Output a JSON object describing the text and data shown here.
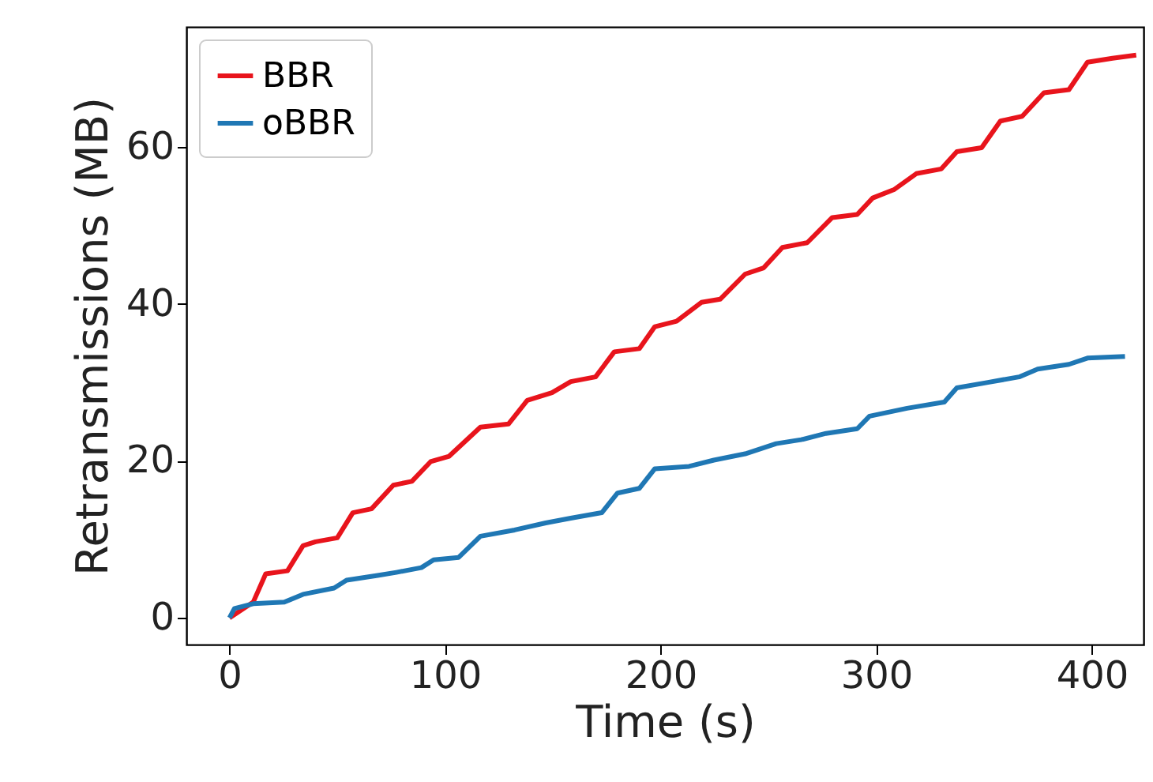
{
  "chart_data": {
    "type": "line",
    "xlabel": "Time (s)",
    "ylabel": "Retransmissions (MB)",
    "xlim": [
      -20,
      424
    ],
    "ylim": [
      -3.4,
      75.3
    ],
    "xticks": [
      0,
      100,
      200,
      300,
      400
    ],
    "yticks": [
      0,
      20,
      40,
      60
    ],
    "grid": false,
    "legend": "top left",
    "line_style": "solid",
    "marker": "none",
    "series": [
      {
        "name": "BBR",
        "color": "#e8141c",
        "x": [
          0,
          11,
          16.8,
          26.9,
          34.1,
          39.9,
          50,
          57.2,
          65.9,
          76,
          84.6,
          93.3,
          101.9,
          116.4,
          129.4,
          138.1,
          149.6,
          158.3,
          169.8,
          178.5,
          190.1,
          197.3,
          207.4,
          218.9,
          227.6,
          239.2,
          247.8,
          256.5,
          268,
          279.6,
          291.2,
          298.4,
          308.5,
          318.6,
          330.2,
          337.4,
          348.9,
          357.6,
          367.7,
          377.8,
          389.4,
          398,
          409.6,
          420.6
        ],
        "values": [
          0,
          2.0,
          5.6,
          6.0,
          9.2,
          9.7,
          10.2,
          13.4,
          13.9,
          16.9,
          17.4,
          19.9,
          20.6,
          24.3,
          24.7,
          27.7,
          28.7,
          30.1,
          30.7,
          33.9,
          34.3,
          37.1,
          37.8,
          40.2,
          40.6,
          43.8,
          44.6,
          47.2,
          47.8,
          51,
          51.4,
          53.5,
          54.6,
          56.6,
          57.2,
          59.4,
          59.9,
          63.3,
          63.9,
          66.9,
          67.3,
          70.8,
          71.3,
          71.7
        ]
      },
      {
        "name": "oBBR",
        "color": "#1f77b4",
        "x": [
          0,
          2.3,
          11,
          25.4,
          34.1,
          48.5,
          54.3,
          68.7,
          77.4,
          89,
          94.7,
          106.3,
          116.4,
          132.3,
          146.7,
          158.3,
          172.7,
          180,
          190.1,
          197.3,
          213.2,
          224.7,
          239.2,
          253.6,
          265.2,
          276.7,
          291.2,
          296.9,
          314.3,
          331.6,
          337.4,
          351.8,
          366.3,
          374.9,
          389.4,
          398,
          415.4
        ],
        "values": [
          0,
          1.2,
          1.8,
          2.0,
          3.0,
          3.8,
          4.8,
          5.4,
          5.8,
          6.4,
          7.4,
          7.7,
          10.4,
          11.2,
          12.1,
          12.7,
          13.4,
          15.9,
          16.5,
          19.0,
          19.3,
          20.1,
          20.9,
          22.2,
          22.7,
          23.5,
          24.1,
          25.7,
          26.7,
          27.5,
          29.3,
          30,
          30.7,
          31.7,
          32.3,
          33.1,
          33.3
        ]
      }
    ]
  }
}
